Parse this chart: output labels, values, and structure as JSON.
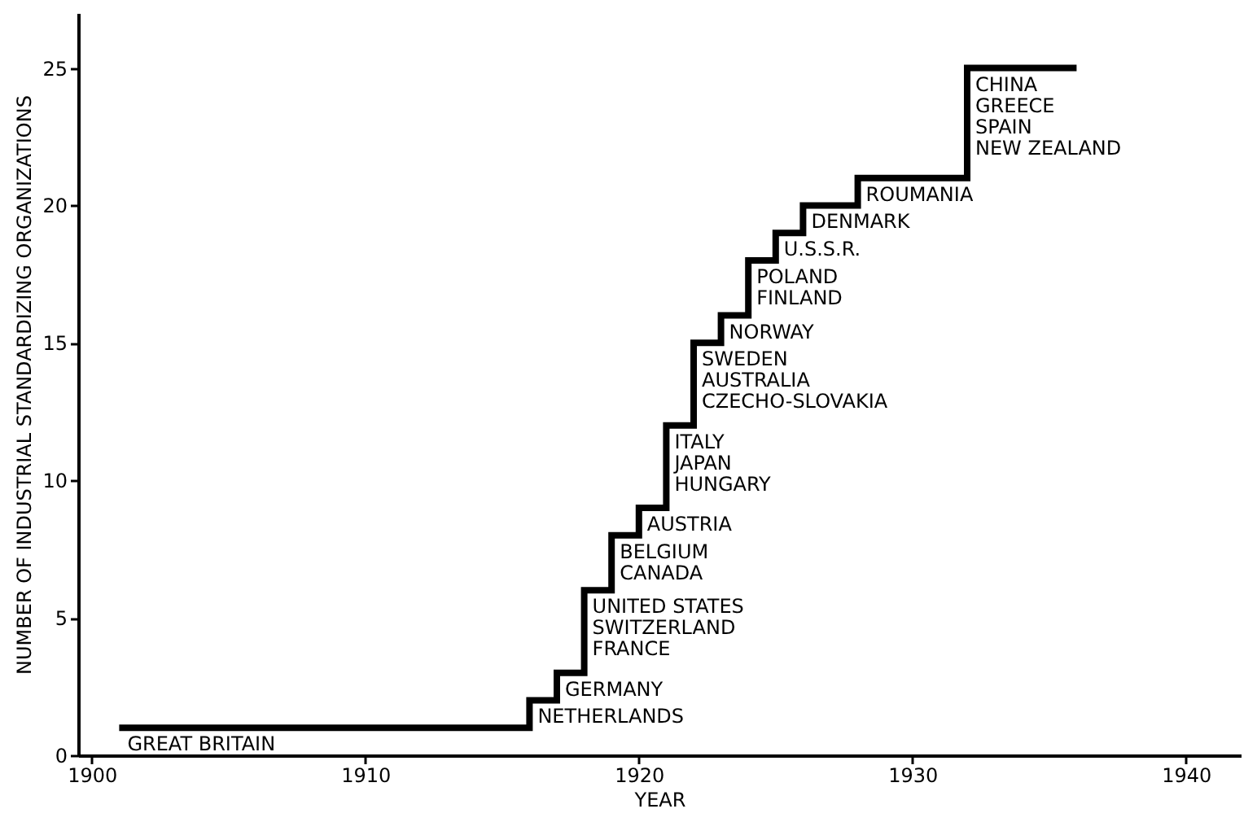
{
  "chart_data": {
    "type": "step",
    "xlabel": "YEAR",
    "ylabel": "NUMBER OF INDUSTRIAL STANDARDIZING ORGANIZATIONS",
    "x": [
      1901,
      1916,
      1917,
      1918,
      1919,
      1920,
      1921,
      1922,
      1923,
      1924,
      1925,
      1926,
      1928,
      1932,
      1936
    ],
    "series": [
      {
        "color": "#000000",
        "values": [
          1,
          2,
          3,
          6,
          8,
          9,
          12,
          15,
          16,
          18,
          19,
          20,
          21,
          25,
          25
        ]
      }
    ],
    "xlim": [
      1899.5,
      1942
    ],
    "xticks": [
      1900,
      1910,
      1920,
      1930,
      1940
    ],
    "ylim": [
      0,
      27
    ],
    "yticks": [
      0,
      5,
      10,
      15,
      20,
      25
    ],
    "grid": false,
    "marker": "none",
    "line_style": "solid",
    "annotations": [
      {
        "text": "GREAT BRITAIN",
        "x": 1901,
        "y": 1
      },
      {
        "text": "NETHERLANDS",
        "x": 1916,
        "y": 2
      },
      {
        "text": "GERMANY",
        "x": 1917,
        "y": 3
      },
      {
        "text": "UNITED STATES\nSWITZERLAND\nFRANCE",
        "x": 1918,
        "y": 6
      },
      {
        "text": "BELGIUM\nCANADA",
        "x": 1919,
        "y": 8
      },
      {
        "text": "AUSTRIA",
        "x": 1920,
        "y": 9
      },
      {
        "text": "ITALY\nJAPAN\nHUNGARY",
        "x": 1921,
        "y": 12
      },
      {
        "text": "SWEDEN\nAUSTRALIA\nCZECHO-SLOVAKIA",
        "x": 1922,
        "y": 15
      },
      {
        "text": "NORWAY",
        "x": 1923,
        "y": 16
      },
      {
        "text": "POLAND\nFINLAND",
        "x": 1924,
        "y": 18
      },
      {
        "text": "U.S.S.R.",
        "x": 1925,
        "y": 19
      },
      {
        "text": "DENMARK",
        "x": 1926,
        "y": 20
      },
      {
        "text": "ROUMANIA",
        "x": 1928,
        "y": 21
      },
      {
        "text": "CHINA\nGREECE\nSPAIN\nNEW ZEALAND",
        "x": 1932,
        "y": 25
      }
    ]
  }
}
